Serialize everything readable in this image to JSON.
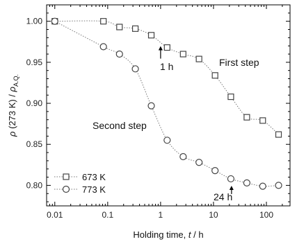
{
  "chart_data": {
    "type": "scatter",
    "xscale": "log",
    "xlim": [
      0.007,
      280
    ],
    "ylim": [
      0.775,
      1.02
    ],
    "grid": false,
    "legend_position": "bottom-left",
    "xticks": [
      0.01,
      0.1,
      1,
      10,
      100
    ],
    "xtick_labels": [
      "0.01",
      "0.1",
      "1",
      "10",
      "100"
    ],
    "yticks": [
      0.8,
      0.85,
      0.9,
      0.95,
      1.0
    ],
    "ytick_labels": [
      "0.80",
      "0.85",
      "0.90",
      "0.95",
      "1.00"
    ],
    "xlabel": {
      "main": "Holding time, ",
      "italic": "t",
      "unit": " / h"
    },
    "ylabel": {
      "rho": "ρ",
      "mid": " (273 K) / ",
      "rho2": "ρ",
      "sub": "A.Q."
    },
    "series": [
      {
        "name": "673 K",
        "marker": "square",
        "color": "#555555",
        "x": [
          0.01,
          0.083,
          0.167,
          0.333,
          0.667,
          1.33,
          2.67,
          5.33,
          10.7,
          21.3,
          42.7,
          85.3,
          170
        ],
        "y": [
          1.0,
          1.0,
          0.993,
          0.991,
          0.983,
          0.968,
          0.96,
          0.954,
          0.934,
          0.908,
          0.883,
          0.879,
          0.862
        ]
      },
      {
        "name": "773 K",
        "marker": "circle",
        "color": "#555555",
        "x": [
          0.01,
          0.083,
          0.167,
          0.333,
          0.667,
          1.33,
          2.67,
          5.33,
          10.7,
          21.3,
          42.7,
          85.3,
          170
        ],
        "y": [
          1.0,
          0.969,
          0.96,
          0.942,
          0.897,
          0.855,
          0.835,
          0.828,
          0.818,
          0.808,
          0.803,
          0.799,
          0.8
        ]
      }
    ],
    "annotations": [
      {
        "id": "first-step",
        "text": "First step"
      },
      {
        "id": "second-step",
        "text": "Second step"
      },
      {
        "id": "one-hour",
        "text": "1 h",
        "x": 1.0,
        "y": 0.968
      },
      {
        "id": "twenty-four-hour",
        "text": "24 h",
        "x": 24,
        "y": 0.808
      }
    ]
  }
}
